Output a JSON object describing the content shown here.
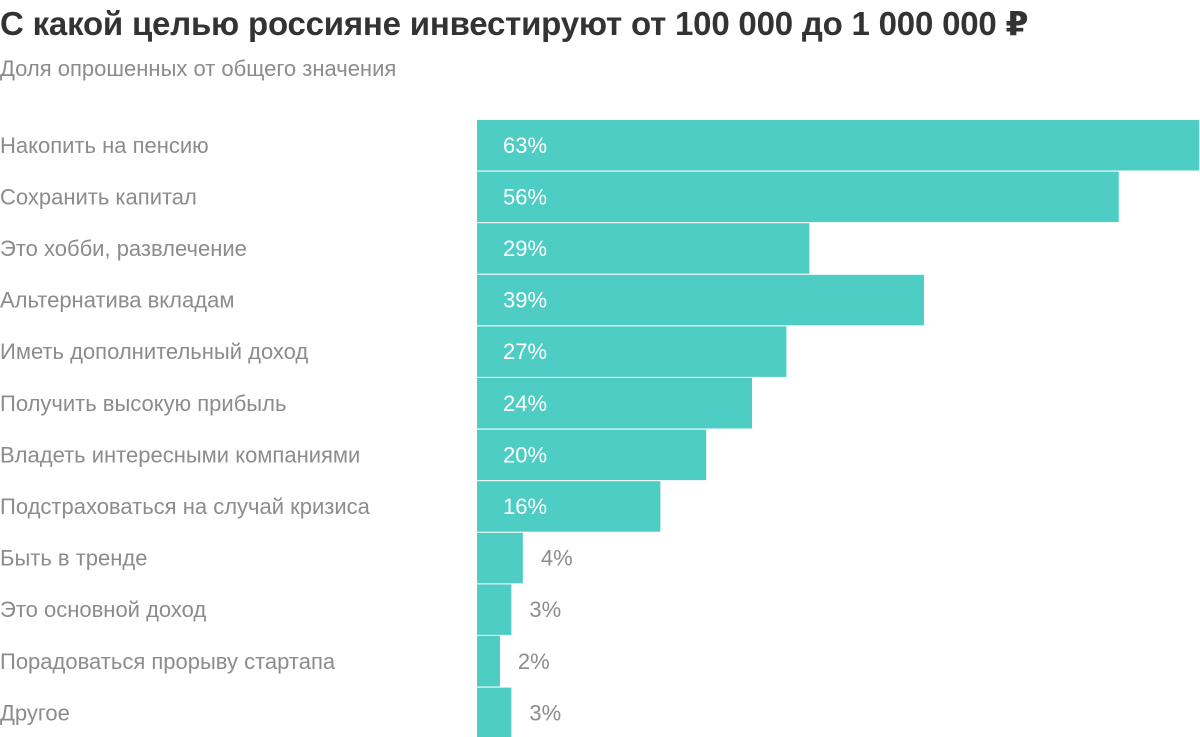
{
  "header": {
    "title": "С какой целью россияне инвестируют от 100 000 до 1 000 000 ₽",
    "subtitle": "Доля опрошенных от общего значения"
  },
  "chart_data": {
    "type": "bar",
    "orientation": "horizontal",
    "title": "С какой целью россияне инвестируют от 100 000 до 1 000 000 ₽",
    "subtitle": "Доля опрошенных от общего значения",
    "unit": "%",
    "categories": [
      "Накопить на пенсию",
      "Сохранить капитал",
      "Это хобби, развлечение",
      "Альтернатива вкладам",
      "Иметь дополнительный доход",
      "Получить высокую прибыль",
      "Владеть интересными компаниями",
      "Подстраховаться на случай кризиса",
      "Быть в тренде",
      "Это основной доход",
      "Порадоваться прорыву стартапа",
      "Другое"
    ],
    "values": [
      63,
      56,
      29,
      39,
      27,
      24,
      20,
      16,
      4,
      3,
      2,
      3
    ],
    "value_labels": [
      "63%",
      "56%",
      "29%",
      "39%",
      "27%",
      "24%",
      "20%",
      "16%",
      "4%",
      "3%",
      "2%",
      "3%"
    ],
    "xlim": [
      0,
      63
    ],
    "grid": false,
    "legend": "none",
    "colors": {
      "bar": "#4ecdc4",
      "label_inside": "#ffffff",
      "label_outside": "#8c8c8c",
      "category_label": "#8c8c8c",
      "title": "#333333"
    }
  }
}
